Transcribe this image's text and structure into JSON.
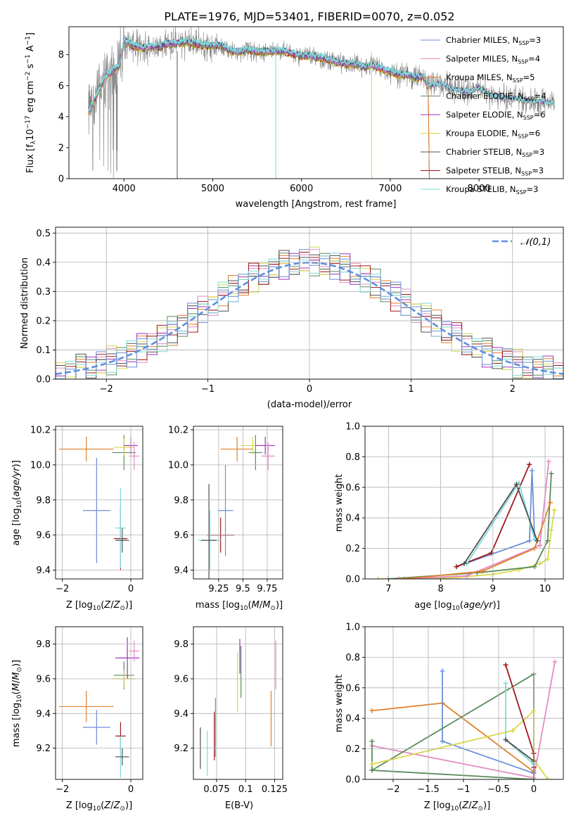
{
  "figure": {
    "title": "PLATE=1976, MJD=53401, FIBERID=0070, z=0.052"
  },
  "colors": {
    "chabrier_miles": "#6a8fd8",
    "salpeter_miles": "#e58ac4",
    "kroupa_miles": "#e07f2a",
    "chabrier_elodie": "#5a8a5a",
    "salpeter_elodie": "#a030c0",
    "kroupa_elodie": "#d8d84a",
    "chabrier_stelib": "#505050",
    "salpeter_stelib": "#a01818",
    "kroupa_stelib": "#7ed8d8",
    "data": "#7f7f7f",
    "gauss": "#5f8fdf"
  },
  "chart_data": [
    {
      "id": "spectrum",
      "type": "line",
      "xlabel": "wavelength [Angstrom, rest frame]",
      "ylabel": "Flux [f_λ 10^-17 erg cm^-2 s^-1 A^-1]",
      "xlim": [
        3380,
        8950
      ],
      "ylim": [
        0,
        9.8
      ],
      "xticks": [
        4000,
        5000,
        6000,
        7000,
        8000
      ],
      "yticks": [
        0,
        2,
        4,
        6,
        8
      ],
      "grid": false,
      "legend_position": "top-right",
      "continuum": {
        "x": [
          3600,
          3650,
          3700,
          3800,
          3900,
          3950,
          4000,
          4100,
          4200,
          4300,
          4400,
          4500,
          4600,
          4700,
          4800,
          4900,
          5000,
          5100,
          5200,
          5300,
          5400,
          5500,
          5600,
          5700,
          5800,
          5900,
          6000,
          6100,
          6200,
          6300,
          6400,
          6500,
          6600,
          6700,
          6800,
          6900,
          7000,
          7100,
          7200,
          7300,
          7380,
          7420,
          7500,
          7600,
          7700,
          7800,
          7900,
          8000,
          8100,
          8200,
          8300,
          8400,
          8500,
          8600,
          8700,
          8800,
          8850
        ],
        "y": [
          4.3,
          4.8,
          5.5,
          6.6,
          7.1,
          7.3,
          8.9,
          8.6,
          8.4,
          8.5,
          8.5,
          8.7,
          8.7,
          8.8,
          8.7,
          8.6,
          8.6,
          8.6,
          8.2,
          8.2,
          8.3,
          8.2,
          8.2,
          8.2,
          8.2,
          8.1,
          7.9,
          7.9,
          7.8,
          7.7,
          7.5,
          7.4,
          7.4,
          7.2,
          7.3,
          7.1,
          6.9,
          6.7,
          6.7,
          6.5,
          6.6,
          6.0,
          6.1,
          6.1,
          5.8,
          5.7,
          5.6,
          5.9,
          5.5,
          5.3,
          5.2,
          5.2,
          5.1,
          5.0,
          5.0,
          4.9,
          4.9
        ]
      },
      "series": [
        {
          "label": "Chabrier MILES, N",
          "sub": "SSP",
          "eq": "=3",
          "color_key": "chabrier_miles"
        },
        {
          "label": "Salpeter MILES, N",
          "sub": "SSP",
          "eq": "=4",
          "color_key": "salpeter_miles"
        },
        {
          "label": "Kroupa MILES, N",
          "sub": "SSP",
          "eq": "=5",
          "color_key": "kroupa_miles"
        },
        {
          "label": "Chabrier ELODIE, N",
          "sub": "SSP",
          "eq": "=4",
          "color_key": "chabrier_elodie"
        },
        {
          "label": "Salpeter ELODIE, N",
          "sub": "SSP",
          "eq": "=6",
          "color_key": "salpeter_elodie"
        },
        {
          "label": "Kroupa ELODIE, N",
          "sub": "SSP",
          "eq": "=6",
          "color_key": "kroupa_elodie"
        },
        {
          "label": "Chabrier STELIB, N",
          "sub": "SSP",
          "eq": "=3",
          "color_key": "chabrier_stelib"
        },
        {
          "label": "Salpeter STELIB, N",
          "sub": "SSP",
          "eq": "=3",
          "color_key": "salpeter_stelib"
        },
        {
          "label": "Kroupa STELIB, N",
          "sub": "SSP",
          "eq": "=3",
          "color_key": "kroupa_stelib"
        }
      ]
    },
    {
      "id": "residuals",
      "type": "histogram",
      "xlabel": "(data-model)/error",
      "ylabel": "Normed distribution",
      "xlim": [
        -2.5,
        2.5
      ],
      "ylim": [
        0,
        0.52
      ],
      "xticks": [
        -2,
        -1,
        0,
        1,
        2
      ],
      "yticks": [
        0,
        0.1,
        0.2,
        0.3,
        0.4,
        0.5
      ],
      "grid": true,
      "bin_width": 0.1,
      "legend": {
        "label": "𝒩(0,1)",
        "position": "top-right"
      },
      "spread": [
        0.03,
        -0.02,
        0.04,
        0.02,
        -0.03,
        0.01,
        -0.04,
        0.03,
        0.05,
        -0.01,
        0.02,
        -0.05,
        0.04,
        -0.02,
        0.01,
        0.03,
        -0.03,
        0.06,
        -0.04,
        0.02
      ]
    },
    {
      "id": "age_vs_Z",
      "type": "errorbar",
      "xlabel": "Z [log10(Z/Z⊙)]",
      "ylabel": "age [log10(age/yr)]",
      "xlim": [
        -2.2,
        0.35
      ],
      "ylim": [
        9.35,
        10.22
      ],
      "xticks": [
        -2,
        0
      ],
      "yticks": [
        9.4,
        9.6,
        9.8,
        10.0,
        10.2
      ],
      "grid": true,
      "points": [
        {
          "x": -1.3,
          "xe": 0.8,
          "y": 10.09,
          "ye": 0.07,
          "color_key": "kroupa_miles"
        },
        {
          "x": -1.0,
          "xe": 0.4,
          "y": 9.74,
          "ye": 0.3,
          "color_key": "chabrier_miles"
        },
        {
          "x": -0.3,
          "xe": 0.2,
          "y": 9.58,
          "ye": 0.18,
          "color_key": "salpeter_stelib"
        },
        {
          "x": -0.3,
          "xe": 0.15,
          "y": 9.64,
          "ye": 0.23,
          "color_key": "kroupa_stelib"
        },
        {
          "x": -0.25,
          "xe": 0.2,
          "y": 9.57,
          "ye": 0.07,
          "color_key": "chabrier_stelib"
        },
        {
          "x": -0.2,
          "xe": 0.35,
          "y": 10.07,
          "ye": 0.1,
          "color_key": "chabrier_elodie"
        },
        {
          "x": -0.2,
          "xe": 0.3,
          "y": 10.1,
          "ye": 0.05,
          "color_key": "kroupa_elodie"
        },
        {
          "x": 0.0,
          "xe": 0.2,
          "y": 10.11,
          "ye": 0.05,
          "color_key": "salpeter_elodie"
        },
        {
          "x": 0.1,
          "xe": 0.15,
          "y": 10.05,
          "ye": 0.08,
          "color_key": "salpeter_miles"
        }
      ]
    },
    {
      "id": "age_vs_mass",
      "type": "errorbar",
      "xlabel": "mass [log10(M/M⊙)]",
      "ylabel": "",
      "xlim": [
        8.99,
        9.91
      ],
      "ylim": [
        9.35,
        10.22
      ],
      "xticks": [
        9.25,
        9.5,
        9.75
      ],
      "yticks": [
        9.4,
        9.6,
        9.8,
        10.0,
        10.2
      ],
      "grid": true,
      "points": [
        {
          "x": 9.44,
          "xe": 0.17,
          "y": 10.09,
          "ye": 0.07,
          "color_key": "kroupa_miles"
        },
        {
          "x": 9.32,
          "xe": 0.08,
          "y": 9.74,
          "ye": 0.26,
          "color_key": "chabrier_miles"
        },
        {
          "x": 9.27,
          "xe": 0.14,
          "y": 9.6,
          "ye": 0.1,
          "color_key": "salpeter_stelib"
        },
        {
          "x": 9.16,
          "xe": 0.12,
          "y": 9.57,
          "ye": 0.17,
          "color_key": "kroupa_stelib"
        },
        {
          "x": 9.15,
          "xe": 0.08,
          "y": 9.57,
          "ye": 0.32,
          "color_key": "chabrier_stelib"
        },
        {
          "x": 9.63,
          "xe": 0.07,
          "y": 10.07,
          "ye": 0.1,
          "color_key": "chabrier_elodie"
        },
        {
          "x": 9.6,
          "xe": 0.12,
          "y": 10.11,
          "ye": 0.05,
          "color_key": "kroupa_elodie"
        },
        {
          "x": 9.73,
          "xe": 0.1,
          "y": 10.11,
          "ye": 0.05,
          "color_key": "salpeter_elodie"
        },
        {
          "x": 9.76,
          "xe": 0.07,
          "y": 10.05,
          "ye": 0.08,
          "color_key": "salpeter_miles"
        }
      ]
    },
    {
      "id": "weight_vs_age",
      "type": "line",
      "xlabel": "age [log10(age/yr)]",
      "ylabel": "mass weight",
      "xlim": [
        6.55,
        10.35
      ],
      "ylim": [
        0,
        1.0
      ],
      "xticks": [
        7,
        8,
        9,
        10
      ],
      "yticks": [
        0,
        0.2,
        0.4,
        0.6,
        0.8,
        1.0
      ],
      "grid": true,
      "series": [
        {
          "color_key": "kroupa_elodie",
          "x": [
            6.8,
            7.2,
            7.7,
            8.3,
            9.0,
            9.5,
            9.9,
            10.05,
            10.12,
            10.18
          ],
          "y": [
            0.0,
            0.0,
            0.0,
            0.01,
            0.03,
            0.06,
            0.1,
            0.13,
            0.32,
            0.45
          ]
        },
        {
          "color_key": "chabrier_elodie",
          "x": [
            7.0,
            8.7,
            9.8,
            10.05,
            10.12
          ],
          "y": [
            0.0,
            0.04,
            0.08,
            0.25,
            0.69
          ]
        },
        {
          "color_key": "salpeter_miles",
          "x": [
            7.2,
            8.5,
            9.9,
            10.07
          ],
          "y": [
            0.0,
            0.02,
            0.22,
            0.77
          ]
        },
        {
          "color_key": "kroupa_miles",
          "x": [
            7.3,
            8.8,
            9.8,
            10.1
          ],
          "y": [
            0.0,
            0.05,
            0.2,
            0.5
          ]
        },
        {
          "color_key": "chabrier_miles",
          "x": [
            8.3,
            9.7,
            9.75,
            9.8
          ],
          "y": [
            0.08,
            0.25,
            0.71,
            0.26
          ]
        },
        {
          "color_key": "salpeter_stelib",
          "x": [
            8.3,
            8.97,
            9.7
          ],
          "y": [
            0.08,
            0.17,
            0.75
          ]
        },
        {
          "color_key": "kroupa_stelib",
          "x": [
            8.5,
            9.5,
            9.8
          ],
          "y": [
            0.1,
            0.63,
            0.26
          ]
        },
        {
          "color_key": "chabrier_stelib",
          "x": [
            8.45,
            9.45,
            9.85
          ],
          "y": [
            0.1,
            0.62,
            0.25
          ]
        }
      ]
    },
    {
      "id": "mass_vs_Z",
      "type": "errorbar",
      "xlabel": "Z [log10(Z/Z⊙)]",
      "ylabel": "mass [log10(M/M⊙)]",
      "xlim": [
        -2.2,
        0.35
      ],
      "ylim": [
        9.02,
        9.9
      ],
      "xticks": [
        -2,
        0
      ],
      "yticks": [
        9.2,
        9.4,
        9.6,
        9.8
      ],
      "grid": true,
      "points": [
        {
          "x": -1.3,
          "xe": 0.8,
          "y": 9.44,
          "ye": 0.09,
          "color_key": "kroupa_miles"
        },
        {
          "x": -1.0,
          "xe": 0.4,
          "y": 9.32,
          "ye": 0.1,
          "color_key": "chabrier_miles"
        },
        {
          "x": -0.3,
          "xe": 0.15,
          "y": 9.27,
          "ye": 0.08,
          "color_key": "salpeter_stelib"
        },
        {
          "x": -0.3,
          "xe": 0.15,
          "y": 9.15,
          "ye": 0.12,
          "color_key": "kroupa_stelib"
        },
        {
          "x": -0.25,
          "xe": 0.2,
          "y": 9.15,
          "ye": 0.05,
          "color_key": "chabrier_stelib"
        },
        {
          "x": -0.2,
          "xe": 0.3,
          "y": 9.62,
          "ye": 0.08,
          "color_key": "chabrier_elodie"
        },
        {
          "x": -0.2,
          "xe": 0.35,
          "y": 9.6,
          "ye": 0.05,
          "color_key": "kroupa_elodie"
        },
        {
          "x": -0.1,
          "xe": 0.35,
          "y": 9.72,
          "ye": 0.12,
          "color_key": "salpeter_elodie"
        },
        {
          "x": 0.1,
          "xe": 0.15,
          "y": 9.76,
          "ye": 0.06,
          "color_key": "salpeter_miles"
        }
      ]
    },
    {
      "id": "mass_vs_ebv",
      "type": "errorbar",
      "xlabel": "E(B-V)",
      "ylabel": "",
      "xlim": [
        0.055,
        0.132
      ],
      "ylim": [
        9.02,
        9.9
      ],
      "xticks": [
        0.075,
        0.1,
        0.125
      ],
      "yticks": [
        9.2,
        9.4,
        9.6,
        9.8
      ],
      "grid": true,
      "points": [
        {
          "x": 0.061,
          "xe": 0,
          "y": 9.2,
          "ye": 0.12,
          "color_key": "chabrier_stelib"
        },
        {
          "x": 0.067,
          "xe": 0,
          "y": 9.17,
          "ye": 0.13,
          "color_key": "kroupa_stelib"
        },
        {
          "x": 0.073,
          "xe": 0,
          "y": 9.27,
          "ye": 0.14,
          "color_key": "salpeter_stelib"
        },
        {
          "x": 0.074,
          "xe": 0,
          "y": 9.32,
          "ye": 0.17,
          "color_key": "chabrier_miles"
        },
        {
          "x": 0.093,
          "xe": 0,
          "y": 9.58,
          "ye": 0.17,
          "color_key": "kroupa_elodie"
        },
        {
          "x": 0.096,
          "xe": 0,
          "y": 9.64,
          "ye": 0.15,
          "color_key": "chabrier_elodie"
        },
        {
          "x": 0.095,
          "xe": 0,
          "y": 9.73,
          "ye": 0.1,
          "color_key": "salpeter_elodie"
        },
        {
          "x": 0.122,
          "xe": 0,
          "y": 9.37,
          "ye": 0.16,
          "color_key": "kroupa_miles"
        },
        {
          "x": 0.126,
          "xe": 0,
          "y": 9.68,
          "ye": 0.14,
          "color_key": "salpeter_miles"
        }
      ]
    },
    {
      "id": "weight_vs_Z",
      "type": "line",
      "xlabel": "Z [log10(Z/Z⊙)]",
      "ylabel": "mass weight",
      "xlim": [
        -2.4,
        0.42
      ],
      "ylim": [
        0,
        1.0
      ],
      "xticks": [
        -2.0,
        -1.5,
        -1.0,
        -0.5,
        0.0
      ],
      "yticks": [
        0,
        0.2,
        0.4,
        0.6,
        0.8,
        1.0
      ],
      "grid": true,
      "series": [
        {
          "color_key": "kroupa_miles",
          "x": [
            -2.3,
            -1.3,
            0.0
          ],
          "y": [
            0.45,
            0.5,
            0.05
          ]
        },
        {
          "color_key": "chabrier_miles",
          "x": [
            -1.3,
            -1.3,
            0.0
          ],
          "y": [
            0.71,
            0.25,
            0.04
          ]
        },
        {
          "color_key": "salpeter_miles",
          "x": [
            -2.3,
            0.0,
            0.3
          ],
          "y": [
            0.22,
            0.01,
            0.77
          ]
        },
        {
          "color_key": "chabrier_elodie",
          "x": [
            -2.3,
            -2.3,
            0.0,
            0.0,
            -2.3
          ],
          "y": [
            0.25,
            0.06,
            0.0,
            0.69,
            0.06
          ]
        },
        {
          "color_key": "kroupa_elodie",
          "x": [
            -2.3,
            -0.3,
            0.0,
            0.0,
            0.2
          ],
          "y": [
            0.1,
            0.32,
            0.45,
            0.13,
            0.0
          ]
        },
        {
          "color_key": "salpeter_stelib",
          "x": [
            -0.4,
            0.0,
            0.0
          ],
          "y": [
            0.75,
            0.17,
            0.08
          ]
        },
        {
          "color_key": "kroupa_stelib",
          "x": [
            -0.4,
            -0.4,
            0.0
          ],
          "y": [
            0.63,
            0.26,
            0.1
          ]
        },
        {
          "color_key": "chabrier_stelib",
          "x": [
            -0.4,
            0.0
          ],
          "y": [
            0.26,
            0.12
          ]
        }
      ]
    }
  ]
}
